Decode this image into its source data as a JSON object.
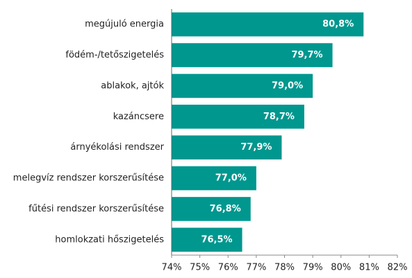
{
  "chart_data": {
    "type": "bar",
    "orientation": "horizontal",
    "categories": [
      "megújuló energia",
      "födém-/tetőszigetelés",
      "ablakok, ajtók",
      "kazáncsere",
      "árnyékolási rendszer",
      "melegvíz rendszer korszerűsítése",
      "fűtési rendszer korszerűsítése",
      "homlokzati hőszigetelés"
    ],
    "values": [
      80.8,
      79.7,
      79.0,
      78.7,
      77.9,
      77.0,
      76.8,
      76.5
    ],
    "value_labels": [
      "80,8%",
      "79,7%",
      "79,0%",
      "78,7%",
      "77,9%",
      "77,0%",
      "76,8%",
      "76,5%"
    ],
    "color": "#00978f",
    "xlim": [
      74,
      82
    ],
    "xticks": [
      {
        "value": 74,
        "label": "74%"
      },
      {
        "value": 75,
        "label": "75%"
      },
      {
        "value": 76,
        "label": "76%"
      },
      {
        "value": 77,
        "label": "77%"
      },
      {
        "value": 78,
        "label": "78%"
      },
      {
        "value": 79,
        "label": "79%"
      },
      {
        "value": 80,
        "label": "80%"
      },
      {
        "value": 81,
        "label": "81%"
      },
      {
        "value": 82,
        "label": "82%"
      }
    ]
  }
}
